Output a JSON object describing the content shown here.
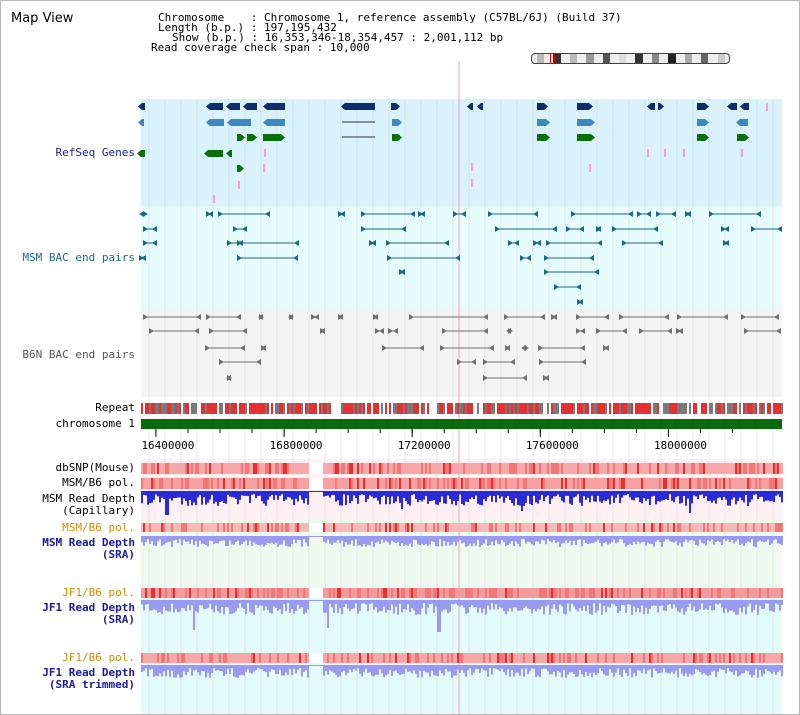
{
  "window": {
    "title": "Map View"
  },
  "info": {
    "chromosome_key": "Chromosome",
    "chromosome_value": "Chromosome 1, reference assembly (C57BL/6J) (Build 37)",
    "length_key": "Length (b.p.)",
    "length_value": "197,195,432",
    "show_key": "Show (b.p.)",
    "show_value": "16,353,346-18,354,457 : 2,001,112 bp",
    "coverage_key": "Read coverage check span",
    "coverage_value": "10,000"
  },
  "ideogram": {
    "bands": [
      "#bbb",
      "#333",
      "#bbb",
      "#999",
      "#555",
      "#ddd",
      "#333",
      "#888",
      "#222",
      "#aaa",
      "#666",
      "#ccc"
    ],
    "marker_color": "#e00000",
    "marker_fraction": 0.09
  },
  "tracks": {
    "refseq": {
      "label": "RefSeq Genes",
      "color": "#1a3399",
      "bg": "#d9f2fc"
    },
    "msm_bac": {
      "label": "MSM BAC end pairs",
      "color": "#1a6a80",
      "bg": "#e6fbfb"
    },
    "b6n_bac": {
      "label": "B6N BAC end pairs",
      "color": "#666666",
      "bg": "#f4f4f4"
    },
    "repeat": {
      "label": "Repeat"
    },
    "chromosome": {
      "label": "chromosome 1"
    },
    "dbsnp": {
      "label": "dbSNP(Mouse)"
    },
    "msm_b6_pol_1": {
      "label": "MSM/B6 pol."
    },
    "msm_read_depth_cap": {
      "label_line1": "MSM Read Depth",
      "label_line2": "(Capillary)"
    },
    "msm_b6_pol_2": {
      "label": "MSM/B6 pol."
    },
    "msm_read_depth_sra": {
      "label_line1": "MSM Read Depth",
      "label_line2": "(SRA)"
    },
    "jf1_b6_pol_1": {
      "label": "JF1/B6 pol."
    },
    "jf1_read_depth_sra": {
      "label_line1": "JF1 Read Depth",
      "label_line2": "(SRA)"
    },
    "jf1_b6_pol_2": {
      "label": "JF1/B6 pol."
    },
    "jf1_read_depth_trim": {
      "label_line1": "JF1 Read Depth",
      "label_line2": "(SRA trimmed)"
    }
  },
  "axis": {
    "ticks": [
      "16400000",
      "16800000",
      "17200000",
      "17600000",
      "18000000"
    ],
    "tick_values": [
      16400000,
      16800000,
      17200000,
      17600000,
      18000000
    ],
    "range": [
      16353346,
      18354457
    ]
  },
  "colors": {
    "gene_dark": "#0d2d6b",
    "gene_mid": "#3d88c0",
    "gene_green": "#0a6e0a",
    "gene_pink": "#f7a0c8",
    "msm_pair": "#1a6a80",
    "b6n_pair": "#707070",
    "chromosome_bar": "#0b6b0b",
    "pol_red": "#e43030",
    "pol_light": "#fbd0d0",
    "depth_blue": "#2a2ad8",
    "depth_light": "#9a9af0",
    "label_blue": "#1a1a9a",
    "label_teal": "#1a6a80",
    "label_orange": "#d28c00",
    "label_gray": "#555555",
    "highlight": "#f0a0b0",
    "grid": "#d8d8d8"
  }
}
